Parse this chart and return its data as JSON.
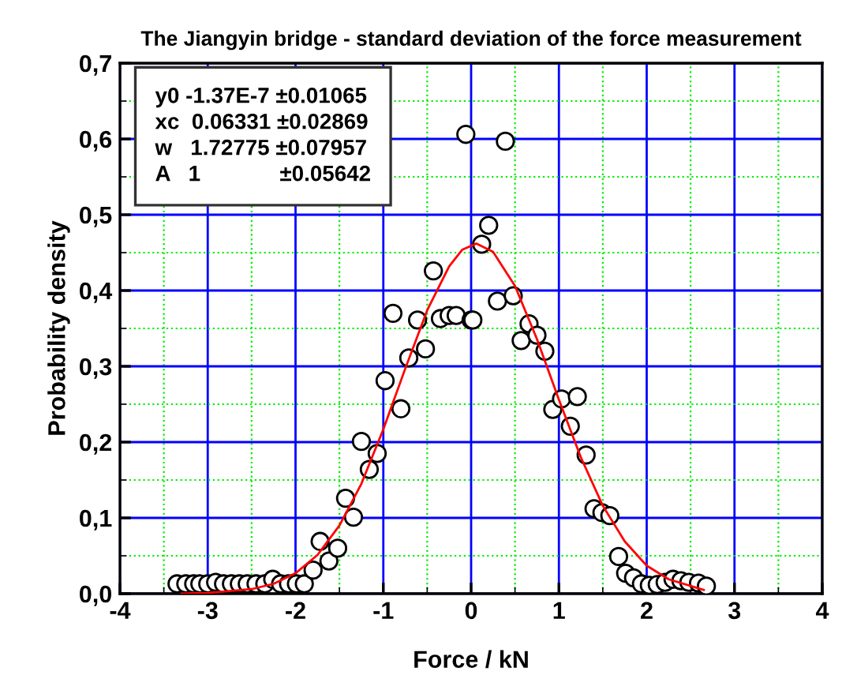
{
  "chart_data": {
    "type": "scatter",
    "title": "The Jiangyin bridge - standard deviation of the force measurement",
    "xlabel": "Force / kN",
    "ylabel": "Probability density",
    "annotations": [
      "y0 -1.37E-7 ±0.01065",
      "xc  0.06331 ±0.02869",
      "w   1.72775 ±0.07957",
      "A   1             ±0.05642"
    ],
    "series": [
      {
        "color": "#000000",
        "marker": "circle",
        "x": [
          -3.35,
          -3.25,
          -3.16,
          -3.09,
          -3.0,
          -2.91,
          -2.82,
          -2.73,
          -2.64,
          -2.55,
          -2.45,
          -2.35,
          -2.26,
          -2.17,
          -2.08,
          -1.99,
          -1.9,
          -1.8,
          -1.72,
          -1.62,
          -1.52,
          -1.43,
          -1.34,
          -1.25,
          -1.16,
          -1.07,
          -0.98,
          -0.89,
          -0.8,
          -0.71,
          -0.61,
          -0.52,
          -0.43,
          -0.35,
          -0.25,
          -0.17,
          -0.06,
          0.0,
          0.02,
          0.12,
          0.2,
          0.3,
          0.39,
          0.48,
          0.57,
          0.66,
          0.75,
          0.84,
          0.93,
          1.03,
          1.13,
          1.21,
          1.31,
          1.4,
          1.49,
          1.58,
          1.68,
          1.76,
          1.85,
          1.94,
          2.03,
          2.12,
          2.21,
          2.3,
          2.39,
          2.48,
          2.59,
          2.68
        ],
        "values": [
          0.013,
          0.013,
          0.013,
          0.013,
          0.013,
          0.015,
          0.013,
          0.013,
          0.013,
          0.013,
          0.013,
          0.013,
          0.019,
          0.013,
          0.013,
          0.013,
          0.013,
          0.031,
          0.069,
          0.043,
          0.06,
          0.126,
          0.101,
          0.201,
          0.164,
          0.185,
          0.281,
          0.37,
          0.244,
          0.311,
          0.361,
          0.323,
          0.426,
          0.363,
          0.367,
          0.367,
          0.606,
          0.361,
          0.361,
          0.461,
          0.486,
          0.386,
          0.597,
          0.393,
          0.334,
          0.356,
          0.341,
          0.32,
          0.243,
          0.257,
          0.221,
          0.26,
          0.183,
          0.112,
          0.107,
          0.103,
          0.049,
          0.027,
          0.021,
          0.013,
          0.011,
          0.012,
          0.015,
          0.019,
          0.017,
          0.015,
          0.014,
          0.01
        ]
      },
      {
        "type": "line",
        "color": "#ff0000",
        "marker": "none",
        "line_style": "solid",
        "x": [
          -3.3,
          -3.0,
          -2.5,
          -2.25,
          -2.0,
          -1.75,
          -1.5,
          -1.25,
          -1.0,
          -0.75,
          -0.5,
          -0.25,
          -0.1,
          0.06,
          0.25,
          0.5,
          0.75,
          1.0,
          1.25,
          1.5,
          1.75,
          2.0,
          2.25,
          2.65
        ],
        "values": [
          0.0,
          0.001,
          0.006,
          0.013,
          0.027,
          0.051,
          0.09,
          0.145,
          0.217,
          0.297,
          0.374,
          0.432,
          0.454,
          0.462,
          0.451,
          0.406,
          0.336,
          0.256,
          0.18,
          0.116,
          0.069,
          0.037,
          0.019,
          0.005
        ]
      }
    ],
    "xlim": [
      -4,
      4
    ],
    "xticks": [
      -4,
      {
        "value": -3.5,
        "label": null
      },
      -3,
      {
        "value": -2.5,
        "label": null
      },
      -2,
      {
        "value": -1.5,
        "label": null
      },
      -1,
      {
        "value": -0.5,
        "label": null
      },
      0,
      {
        "value": 0.5,
        "label": null
      },
      1,
      {
        "value": 1.5,
        "label": null
      },
      2,
      {
        "value": 2.5,
        "label": null
      },
      3,
      {
        "value": 3.5,
        "label": null
      },
      4
    ],
    "ylim": [
      0,
      0.7
    ],
    "yticks": [
      {
        "value": 0,
        "label": "0,0"
      },
      {
        "value": 0.1,
        "label": "0,1"
      },
      {
        "value": 0.2,
        "label": "0,2"
      },
      {
        "value": 0.3,
        "label": "0,3"
      },
      {
        "value": 0.4,
        "label": "0,4"
      },
      {
        "value": 0.5,
        "label": "0,5"
      },
      {
        "value": 0.6,
        "label": "0,6"
      },
      {
        "value": 0.7,
        "label": "0,7"
      },
      {
        "value": 0.05,
        "label": null
      },
      {
        "value": 0.15,
        "label": null
      },
      {
        "value": 0.25,
        "label": null
      },
      {
        "value": 0.35,
        "label": null
      },
      {
        "value": 0.45,
        "label": null
      },
      {
        "value": 0.55,
        "label": null
      },
      {
        "value": 0.65,
        "label": null
      }
    ],
    "grid": true,
    "legend": false
  }
}
